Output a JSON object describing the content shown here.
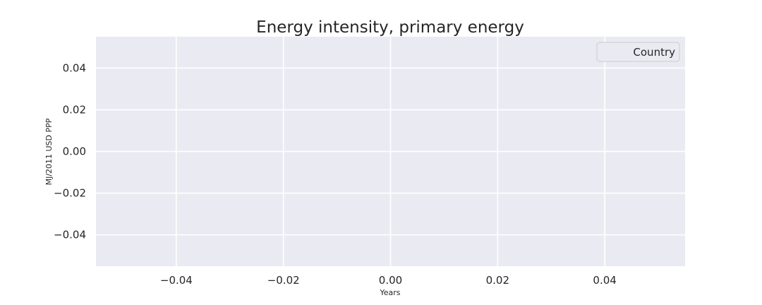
{
  "chart_data": {
    "type": "line",
    "title": "Energy intensity, primary energy",
    "xlabel": "Years",
    "ylabel": "MJ/2011 USD PPP",
    "xlim": [
      -0.055,
      0.055
    ],
    "ylim": [
      -0.055,
      0.055
    ],
    "xticks": [
      -0.04,
      -0.02,
      0.0,
      0.02,
      0.04
    ],
    "xtick_labels": [
      "−0.04",
      "−0.02",
      "0.00",
      "0.02",
      "0.04"
    ],
    "yticks": [
      0.04,
      0.02,
      0.0,
      -0.02,
      -0.04
    ],
    "ytick_labels": [
      "0.04",
      "0.02",
      "0.00",
      "−0.02",
      "−0.04"
    ],
    "grid": true,
    "legend": {
      "title": "Country",
      "placement": "top-right",
      "entries": []
    },
    "series": [],
    "colors": {
      "plot_background": "#eaeaf2",
      "grid": "#ffffff",
      "text": "#262626"
    }
  }
}
